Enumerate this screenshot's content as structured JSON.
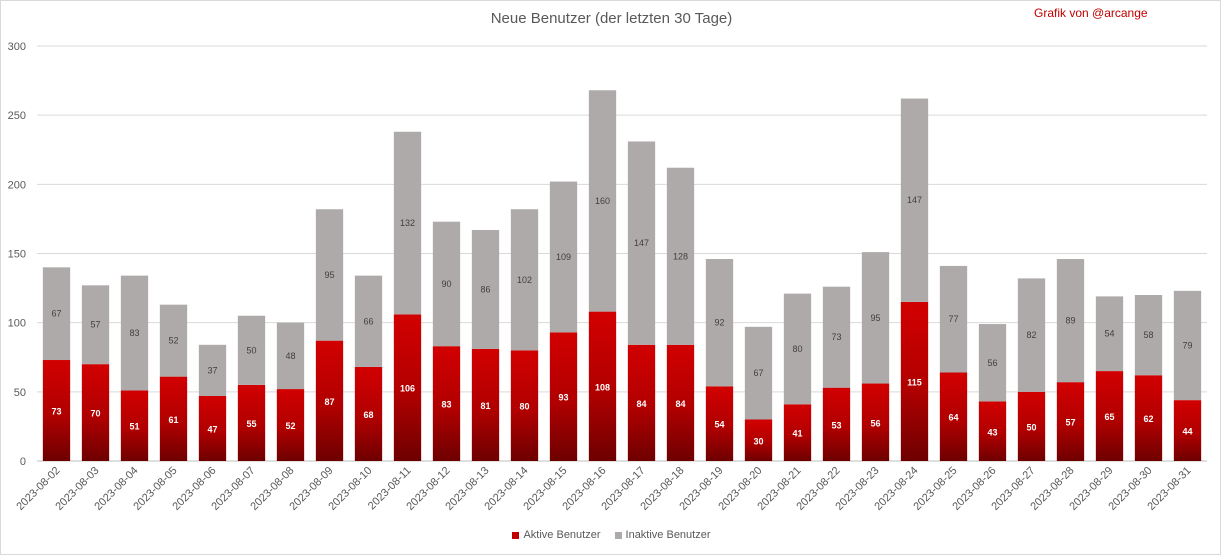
{
  "chart_data": {
    "type": "bar",
    "stacked": true,
    "title": "Neue Benutzer (der letzten 30 Tage)",
    "credit": "Grafik von @arcange",
    "categories": [
      "2023-08-02",
      "2023-08-03",
      "2023-08-04",
      "2023-08-05",
      "2023-08-06",
      "2023-08-07",
      "2023-08-08",
      "2023-08-09",
      "2023-08-10",
      "2023-08-11",
      "2023-08-12",
      "2023-08-13",
      "2023-08-14",
      "2023-08-15",
      "2023-08-16",
      "2023-08-17",
      "2023-08-18",
      "2023-08-19",
      "2023-08-20",
      "2023-08-21",
      "2023-08-22",
      "2023-08-23",
      "2023-08-24",
      "2023-08-25",
      "2023-08-26",
      "2023-08-27",
      "2023-08-28",
      "2023-08-29",
      "2023-08-30",
      "2023-08-31"
    ],
    "series": [
      {
        "name": "Aktive Benutzer",
        "color": "#c00000",
        "values": [
          73,
          70,
          51,
          61,
          47,
          55,
          52,
          87,
          68,
          106,
          83,
          81,
          80,
          93,
          108,
          84,
          84,
          54,
          30,
          41,
          53,
          56,
          115,
          64,
          43,
          50,
          57,
          65,
          62,
          44
        ]
      },
      {
        "name": "Inaktive Benutzer",
        "color": "#aeaaaa",
        "values": [
          67,
          57,
          83,
          52,
          37,
          50,
          48,
          95,
          66,
          132,
          90,
          86,
          102,
          109,
          160,
          147,
          128,
          92,
          67,
          80,
          73,
          95,
          147,
          77,
          56,
          82,
          89,
          54,
          58,
          79
        ]
      }
    ],
    "ylim": [
      0,
      300
    ],
    "yticks": [
      0,
      50,
      100,
      150,
      200,
      250,
      300
    ],
    "grid": true,
    "legend": "bottom"
  }
}
